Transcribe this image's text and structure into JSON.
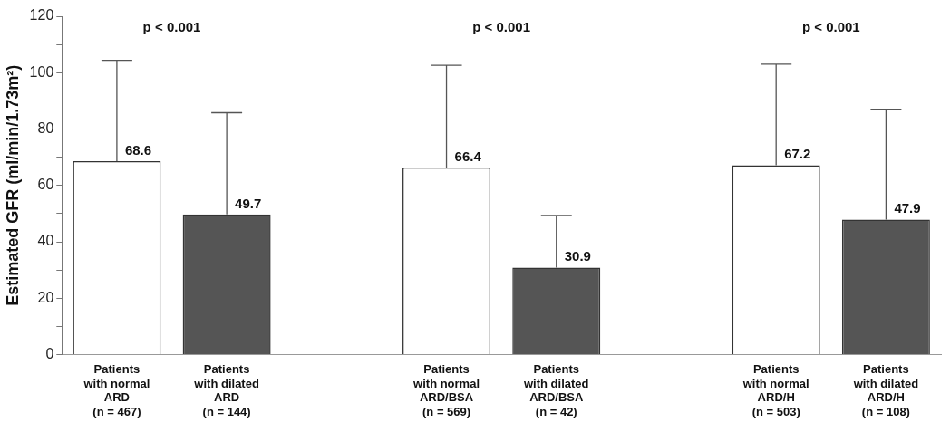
{
  "chart_data": {
    "type": "bar",
    "ylabel": "Estimated GFR (ml/min/1.73m²)",
    "categories": [
      "Patients\nwith normal\nARD\n(n = 467)",
      "Patients\nwith dilated\nARD\n(n = 144)",
      null,
      "Patients\nwith normal\nARD/BSA\n(n = 569)",
      "Patients\nwith dilated\nARD/BSA\n(n = 42)",
      null,
      "Patients\nwith normal\nARD/H\n(n = 503)",
      "Patients\nwith dilated\nARD/H\n(n = 108)"
    ],
    "values": [
      68.6,
      49.7,
      null,
      66.4,
      30.9,
      null,
      67.2,
      47.9
    ],
    "colors": [
      "#ffffff",
      "#555555",
      null,
      "#ffffff",
      "#555555",
      null,
      "#ffffff",
      "#555555"
    ],
    "errors": [
      [
        68.6,
        104.4
      ],
      [
        49.7,
        85.8
      ],
      null,
      [
        66.4,
        102.6
      ],
      [
        30.9,
        49.4
      ],
      null,
      [
        67.2,
        103
      ],
      [
        47.9,
        87
      ]
    ],
    "data_labels": true,
    "annotations": [
      "p < 0.001",
      "p < 0.001",
      "p < 0.001"
    ],
    "ylim": [
      0,
      120
    ],
    "yticks": [
      0,
      {
        "value": 10,
        "label": null
      },
      20,
      {
        "value": 30,
        "label": null
      },
      40,
      {
        "value": 50,
        "label": null
      },
      60,
      {
        "value": 70,
        "label": null
      },
      80,
      {
        "value": 90,
        "label": null
      },
      100,
      {
        "value": 110,
        "label": null
      },
      120
    ],
    "grid": false,
    "legend": false
  }
}
